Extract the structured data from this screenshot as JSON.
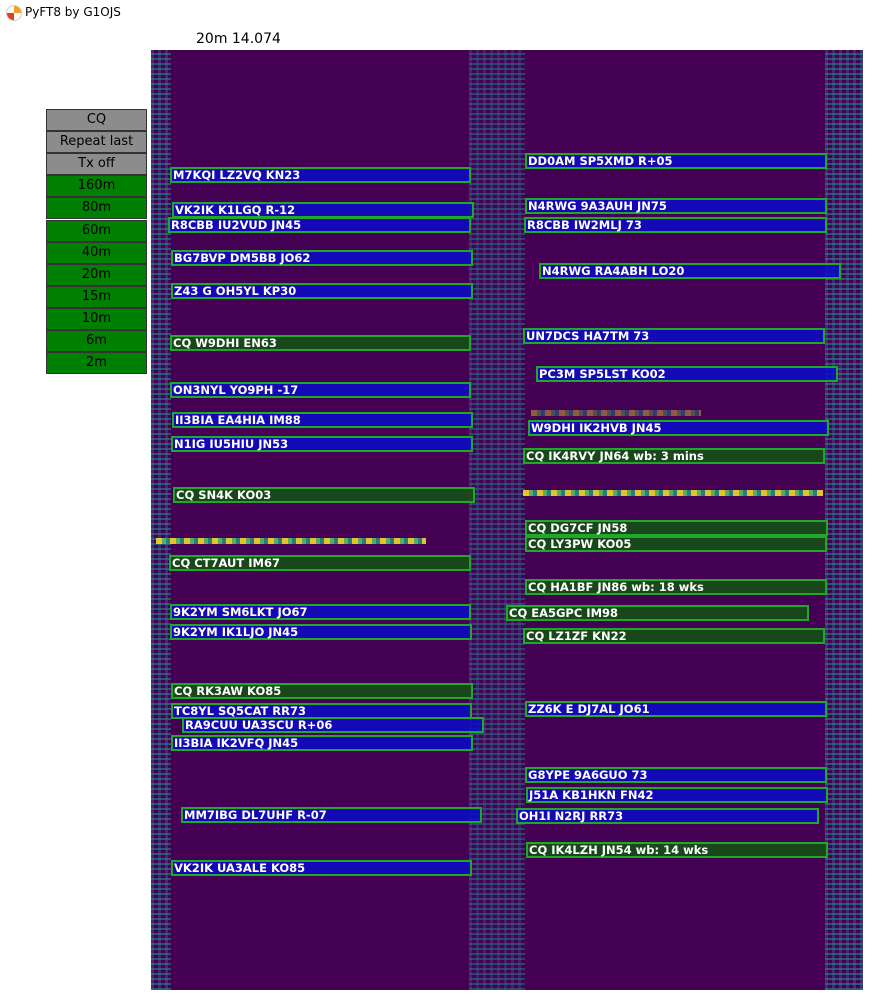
{
  "window": {
    "title": "PyFT8 by G1OJS",
    "icon": "app-logo-icon"
  },
  "band_label": "20m 14.074",
  "buttons": [
    {
      "label": "CQ",
      "style": "grey"
    },
    {
      "label": "Repeat last",
      "style": "grey"
    },
    {
      "label": "Tx off",
      "style": "grey"
    },
    {
      "label": "160m",
      "style": "band"
    },
    {
      "label": "80m",
      "style": "band"
    },
    {
      "label": "60m",
      "style": "band"
    },
    {
      "label": "40m",
      "style": "band"
    },
    {
      "label": "20m",
      "style": "band"
    },
    {
      "label": "15m",
      "style": "band"
    },
    {
      "label": "10m",
      "style": "band"
    },
    {
      "label": "6m",
      "style": "band"
    },
    {
      "label": "2m",
      "style": "band"
    }
  ],
  "colors": {
    "cq_box": "#145014",
    "reply_box": "#0a0ac8",
    "box_border": "#1fa82a",
    "waterfall_bg": "#440154",
    "band_button": "#008000",
    "control_button": "#8c8c8c"
  },
  "messages": [
    {
      "text": "M7KQI LZ2VQ KN23",
      "type": "blue"
    },
    {
      "text": "VK2IK K1LGQ R-12",
      "type": "blue"
    },
    {
      "text": "R8CBB IU2VUD JN45",
      "type": "blue"
    },
    {
      "text": "BG7BVP DM5BB JO62",
      "type": "blue"
    },
    {
      "text": "Z43  G OH5YL KP30",
      "type": "blue"
    },
    {
      "text": "CQ W9DHI EN63",
      "type": "green"
    },
    {
      "text": "ON3NYL YO9PH -17",
      "type": "blue"
    },
    {
      "text": "II3BIA EA4HIA IM88",
      "type": "blue"
    },
    {
      "text": "N1IG IU5HIU JN53",
      "type": "blue"
    },
    {
      "text": "CQ SN4K KO03",
      "type": "green"
    },
    {
      "text": "CQ CT7AUT IM67",
      "type": "green"
    },
    {
      "text": "9K2YM SM6LKT JO67",
      "type": "blue"
    },
    {
      "text": "9K2YM IK1LJO JN45",
      "type": "blue"
    },
    {
      "text": "CQ RK3AW KO85",
      "type": "green"
    },
    {
      "text": "TC8YL SQ5CAT RR73",
      "type": "blue"
    },
    {
      "text": "RA9CUU UA3SCU R+06",
      "type": "blue"
    },
    {
      "text": "II3BIA IK2VFQ JN45",
      "type": "blue"
    },
    {
      "text": "MM7IBG DL7UHF R-07",
      "type": "blue"
    },
    {
      "text": "VK2IK UA3ALE KO85",
      "type": "blue"
    },
    {
      "text": "DD0AM SP5XMD R+05",
      "type": "blue"
    },
    {
      "text": "N4RWG 9A3AUH JN75",
      "type": "blue"
    },
    {
      "text": "R8CBB IW2MLJ 73",
      "type": "blue"
    },
    {
      "text": "N4RWG RA4ABH LO20",
      "type": "blue"
    },
    {
      "text": "UN7DCS HA7TM 73",
      "type": "blue"
    },
    {
      "text": "PC3M SP5LST KO02",
      "type": "blue"
    },
    {
      "text": "W9DHI IK2HVB JN45",
      "type": "blue"
    },
    {
      "text": "CQ IK4RVY JN64 wb: 3 mins",
      "type": "green"
    },
    {
      "text": "CQ DG7CF JN58",
      "type": "green"
    },
    {
      "text": "CQ LY3PW KO05",
      "type": "green"
    },
    {
      "text": "CQ HA1BF JN86 wb: 18 wks",
      "type": "green"
    },
    {
      "text": "CQ EA5GPC IM98",
      "type": "green"
    },
    {
      "text": "CQ LZ1ZF KN22",
      "type": "green"
    },
    {
      "text": "ZZ6K E DJ7AL JO61",
      "type": "blue"
    },
    {
      "text": "G8YPE 9A6GUO 73",
      "type": "blue"
    },
    {
      "text": "J51A KB1HKN FN42",
      "type": "blue"
    },
    {
      "text": "OH1I N2RJ RR73",
      "type": "blue"
    },
    {
      "text": "CQ IK4LZH JN54 wb: 14 wks",
      "type": "green"
    }
  ]
}
